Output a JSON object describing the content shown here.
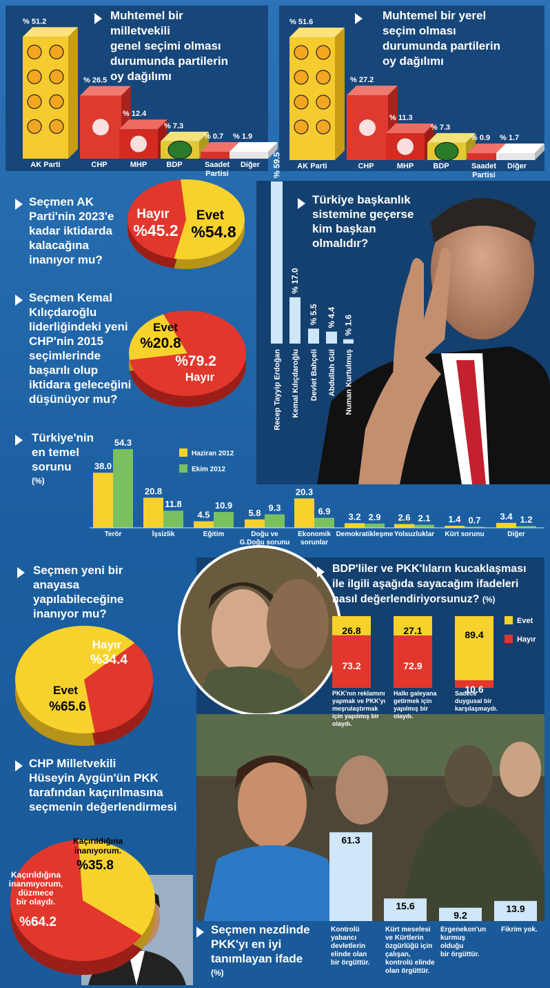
{
  "colors": {
    "akp": "#f6cb2f",
    "chp": "#e4362e",
    "mhp": "#d6281f",
    "bdp": "#e8d43a",
    "yellow": "#f7d22d",
    "red": "#e2372d",
    "green": "#79c160",
    "bg": "#1f64a6",
    "lightblue": "#cfe7f8"
  },
  "chart_data": [
    {
      "type": "bar",
      "title": "Muhtemel bir milletvekili genel seçimi olması durumunda partilerin oy dağılımı",
      "categories": [
        "AK Parti",
        "CHP",
        "MHP",
        "BDP",
        "Saadet Partisi",
        "Diğer"
      ],
      "values": [
        51.2,
        26.5,
        12.4,
        7.3,
        0.7,
        1.9
      ],
      "labels": [
        "% 51.2",
        "% 26.5",
        "% 12.4",
        "% 7.3",
        "% 0.7",
        "% 1.9"
      ]
    },
    {
      "type": "bar",
      "title": "Muhtemel bir yerel seçim olması durumunda partilerin oy dağılımı",
      "categories": [
        "AK Parti",
        "CHP",
        "MHP",
        "BDP",
        "Saadet Partisi",
        "Diğer"
      ],
      "values": [
        51.6,
        27.2,
        11.3,
        7.3,
        0.9,
        1.7
      ],
      "labels": [
        "% 51.6",
        "% 27.2",
        "% 11.3",
        "% 7.3",
        "% 0.9",
        "% 1.7"
      ]
    },
    {
      "type": "pie",
      "title": "Seçmen AK Parti'nin 2023'e kadar iktidarda kalacağına inanıyor mu?",
      "slices": [
        {
          "name": "Evet",
          "value": 54.8,
          "label": "%54.8"
        },
        {
          "name": "Hayır",
          "value": 45.2,
          "label": "%45.2"
        }
      ]
    },
    {
      "type": "pie",
      "title": "Seçmen Kemal Kılıçdaroğlu liderliğindeki yeni CHP'nin 2015 seçimlerinde başarılı olup iktidara geleceğini düşünüyor mu?",
      "slices": [
        {
          "name": "Evet",
          "value": 20.8,
          "label": "%20.8"
        },
        {
          "name": "Hayır",
          "value": 79.2,
          "label": "%79.2"
        }
      ]
    },
    {
      "type": "bar",
      "title": "Türkiye başkanlık sistemine geçerse kim başkan olmalıdır?",
      "categories": [
        "Recep Tayyip Erdoğan",
        "Kemal Kılıçdaroğlu",
        "Devlet Bahçeli",
        "Abdullah Gül",
        "Numan Kurtulmuş"
      ],
      "values": [
        59.5,
        17.0,
        5.5,
        4.4,
        1.6
      ],
      "labels": [
        "% 59.5",
        "% 17.0",
        "% 5.5",
        "% 4.4",
        "% 1.6"
      ]
    },
    {
      "type": "bar",
      "title": "Türkiye'nin en temel sorunu",
      "unit": "(%)",
      "categories": [
        "Terör",
        "İşsizlik",
        "Eğitim",
        "Doğu ve G.Doğu sorunu",
        "Ekonomik sorunlar",
        "Demokratikleşme",
        "Yolsuzluklar",
        "Kürt sorunu",
        "Diğer"
      ],
      "series": [
        {
          "name": "Haziran 2012",
          "values": [
            38.0,
            20.8,
            4.5,
            5.8,
            20.3,
            3.2,
            2.6,
            1.4,
            3.4
          ],
          "labels": [
            "38.0",
            "20.8",
            "4.5",
            "5.8",
            "20.3",
            "3.2",
            "2.6",
            "1.4",
            "3.4"
          ]
        },
        {
          "name": "Ekim 2012",
          "values": [
            54.3,
            11.8,
            10.9,
            9.3,
            6.9,
            2.9,
            2.1,
            0.7,
            1.2
          ],
          "labels": [
            "54.3",
            "11.8",
            "10.9",
            "9.3",
            "6.9",
            "2.9",
            "2.1",
            "0.7",
            "1.2"
          ]
        }
      ]
    },
    {
      "type": "pie",
      "title": "Seçmen yeni bir anayasa yapılabileceğine inanıyor mu?",
      "slices": [
        {
          "name": "Evet",
          "value": 65.6,
          "label": "%65.6"
        },
        {
          "name": "Hayır",
          "value": 34.4,
          "label": "%34.4"
        }
      ]
    },
    {
      "type": "bar",
      "title": "BDP'liler ve PKK'lıların kucaklaşması ile ilgili aşağıda sayacağım ifadeleri nasıl değerlendiriyorsunuz?",
      "unit": "(%)",
      "categories": [
        "PKK'nın reklamını yapmak ve PKK'yı meşrulaştırmak için yapılmış bir olaydı.",
        "Halkı galeyana getirmek için yapılmış bir olaydı.",
        "Sadece duygusal bir karşılaşmaydı."
      ],
      "series": [
        {
          "name": "Evet",
          "values": [
            26.8,
            27.1,
            89.4
          ],
          "labels": [
            "26.8",
            "27.1",
            "89.4"
          ]
        },
        {
          "name": "Hayır",
          "values": [
            73.2,
            72.9,
            10.6
          ],
          "labels": [
            "73.2",
            "72.9",
            "10.6"
          ]
        }
      ]
    },
    {
      "type": "pie",
      "title": "CHP Milletvekili Hüseyin Aygün'ün PKK tarafından kaçırılmasına seçmenin değerlendirmesi",
      "slices": [
        {
          "name": "Kaçırıldığına inanıyorum.",
          "value": 35.8,
          "label": "%35.8"
        },
        {
          "name": "Kaçırıldığına inanmıyorum, düzmece bir olaydı.",
          "value": 64.2,
          "label": "%64.2"
        }
      ]
    },
    {
      "type": "bar",
      "title": "Seçmen nezdinde PKK'yı en iyi tanımlayan ifade",
      "unit": "(%)",
      "categories": [
        "Kontrolü yabancı devletlerin elinde olan bir örgüttür.",
        "Kürt meselesi ve Kürtlerin özgürlüğü için çalışan, kontrolü elinde olan örgüttür.",
        "Ergenekon'un kurmuş olduğu bir örgüttür.",
        "Fikrim yok."
      ],
      "values": [
        61.3,
        15.6,
        9.2,
        13.9
      ],
      "labels": [
        "61.3",
        "15.6",
        "9.2",
        "13.9"
      ]
    }
  ],
  "text": {
    "c1_title": [
      "Muhtemel bir",
      "milletvekili",
      "genel seçimi olması",
      "durumunda partilerin",
      "oy dağılımı"
    ],
    "c2_title": [
      "Muhtemel bir yerel",
      "seçim olması",
      "durumunda partilerin",
      "oy dağılımı"
    ],
    "pie1_title": [
      "Seçmen AK",
      "Parti'nin 2023'e",
      "kadar iktidarda",
      "kalacağına",
      "inanıyor mu?"
    ],
    "pie2_title": [
      "Seçmen Kemal",
      "Kılıçdaroğlu",
      "liderliğindeki yeni",
      "CHP'nin 2015",
      "seçimlerinde",
      "başarılı olup",
      "iktidara geleceğini",
      "düşünüyor mu?"
    ],
    "pres_title": [
      "Türkiye başkanlık",
      "sistemine geçerse",
      "kim başkan",
      "olmalıdır?"
    ],
    "sorun_title": [
      "Türkiye'nin",
      "en temel",
      "sorunu"
    ],
    "sorun_unit": "(%)",
    "anayasa_title": [
      "Seçmen yeni bir",
      "anayasa",
      "yapılabileceğine",
      "inanıyor mu?"
    ],
    "bdp_title": [
      "BDP'liler ve PKK'lıların kucaklaşması",
      "ile ilgili aşağıda sayacağım ifadeleri",
      "nasıl değerlendiriyorsunuz?"
    ],
    "bdp_unit": "(%)",
    "aygun_title": [
      "CHP Milletvekili",
      "Hüseyin Aygün'ün PKK",
      "tarafından kaçırılmasına",
      "seçmenin değerlendirmesi"
    ],
    "pkk_title": [
      "Seçmen nezdinde",
      "PKK'yı en iyi",
      "tanımlayan ifade"
    ],
    "pkk_unit": "(%)",
    "pie1_evet": "Evet",
    "pie1_hayir": "Hayır",
    "pie2_evet": "Evet",
    "pie2_hayir": "Hayır",
    "pie3_evet": "Evet",
    "pie3_hayir": "Hayır",
    "pie4_a_lines": [
      "Kaçırıldığına",
      "inanıyorum."
    ],
    "pie4_b_lines": [
      "Kaçırıldığına",
      "inanmıyorum,",
      "düzmece",
      "bir olaydı."
    ]
  }
}
